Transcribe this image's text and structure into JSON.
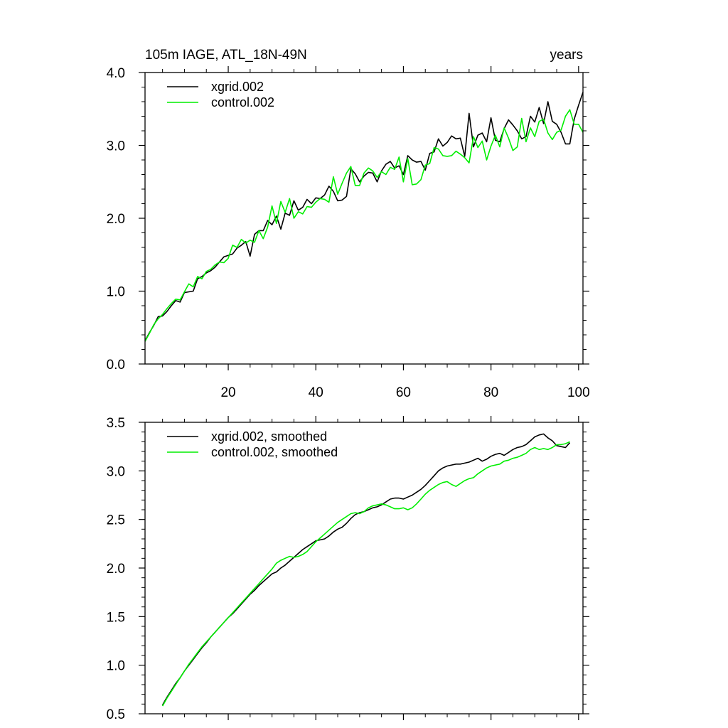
{
  "chart_data": [
    {
      "type": "line",
      "title": "105m IAGE, ATL_18N-49N",
      "units_label": "years",
      "xlim": [
        1,
        101
      ],
      "ylim": [
        0,
        4
      ],
      "x_ticks": [
        20,
        40,
        60,
        80,
        100
      ],
      "y_ticks": [
        0,
        1,
        2,
        3,
        4
      ],
      "y_tick_labels": [
        "0.0",
        "1.0",
        "2.0",
        "3.0",
        "4.0"
      ],
      "legend": "top-left",
      "x_start": 1,
      "series": [
        {
          "name": "xgrid.002",
          "color": "#000000",
          "values": [
            0.32,
            0.43,
            0.53,
            0.65,
            0.66,
            0.72,
            0.8,
            0.87,
            0.85,
            0.98,
            0.99,
            1.0,
            1.17,
            1.2,
            1.25,
            1.28,
            1.33,
            1.4,
            1.47,
            1.49,
            1.51,
            1.59,
            1.63,
            1.68,
            1.48,
            1.78,
            1.83,
            1.83,
            1.97,
            1.91,
            2.03,
            1.85,
            2.07,
            2.04,
            2.24,
            2.11,
            2.15,
            2.26,
            2.2,
            2.28,
            2.27,
            2.32,
            2.44,
            2.37,
            2.24,
            2.25,
            2.3,
            2.68,
            2.61,
            2.5,
            2.58,
            2.63,
            2.62,
            2.5,
            2.65,
            2.74,
            2.78,
            2.69,
            2.72,
            2.6,
            2.86,
            2.8,
            2.77,
            2.78,
            2.66,
            2.89,
            2.91,
            3.09,
            2.99,
            3.04,
            3.13,
            3.09,
            3.1,
            2.85,
            3.44,
            2.98,
            3.14,
            3.17,
            3.05,
            3.38,
            3.07,
            3.05,
            3.23,
            3.35,
            3.28,
            3.2,
            3.09,
            3.12,
            3.4,
            3.32,
            3.52,
            3.3,
            3.6,
            3.33,
            3.29,
            3.18,
            3.02,
            3.02,
            3.36,
            3.55,
            3.73
          ]
        },
        {
          "name": "control.002",
          "color": "#00ee00",
          "values": [
            0.31,
            0.42,
            0.54,
            0.62,
            0.68,
            0.76,
            0.83,
            0.89,
            0.88,
            0.99,
            1.1,
            1.06,
            1.2,
            1.17,
            1.27,
            1.3,
            1.36,
            1.4,
            1.39,
            1.45,
            1.63,
            1.6,
            1.71,
            1.66,
            1.7,
            1.67,
            1.83,
            1.72,
            1.88,
            2.17,
            1.93,
            2.23,
            2.08,
            2.27,
            2.0,
            2.09,
            2.06,
            2.16,
            2.15,
            2.22,
            2.27,
            2.26,
            2.22,
            2.57,
            2.33,
            2.48,
            2.62,
            2.71,
            2.45,
            2.45,
            2.62,
            2.69,
            2.65,
            2.56,
            2.64,
            2.6,
            2.7,
            2.67,
            2.84,
            2.5,
            2.82,
            2.46,
            2.47,
            2.53,
            2.73,
            2.75,
            2.97,
            2.95,
            2.86,
            2.85,
            2.86,
            2.92,
            2.88,
            2.83,
            2.76,
            3.12,
            2.97,
            3.06,
            2.8,
            2.99,
            3.14,
            2.98,
            3.24,
            3.1,
            2.93,
            2.98,
            3.37,
            3.05,
            3.24,
            3.12,
            3.33,
            3.36,
            3.17,
            3.08,
            3.18,
            3.21,
            3.4,
            3.49,
            3.29,
            3.29,
            3.18
          ]
        }
      ]
    },
    {
      "type": "line",
      "title": "",
      "xlim": [
        1,
        101
      ],
      "ylim": [
        0.5,
        3.5
      ],
      "x_ticks": [
        20,
        40,
        60,
        80,
        100
      ],
      "y_ticks": [
        0.5,
        1.0,
        1.5,
        2.0,
        2.5,
        3.0,
        3.5
      ],
      "y_tick_labels": [
        "0.5",
        "1.0",
        "1.5",
        "2.0",
        "2.5",
        "3.0",
        "3.5"
      ],
      "legend": "top-left",
      "x_start": 5,
      "series": [
        {
          "name": "xgrid.002, smoothed",
          "color": "#000000",
          "values": [
            0.59,
            0.67,
            0.74,
            0.81,
            0.87,
            0.94,
            1.0,
            1.06,
            1.12,
            1.18,
            1.23,
            1.29,
            1.34,
            1.39,
            1.44,
            1.49,
            1.53,
            1.58,
            1.63,
            1.68,
            1.73,
            1.77,
            1.82,
            1.86,
            1.9,
            1.94,
            1.96,
            2.0,
            2.03,
            2.07,
            2.11,
            2.15,
            2.19,
            2.22,
            2.25,
            2.28,
            2.29,
            2.3,
            2.33,
            2.37,
            2.4,
            2.42,
            2.46,
            2.51,
            2.55,
            2.57,
            2.58,
            2.6,
            2.62,
            2.63,
            2.65,
            2.68,
            2.71,
            2.72,
            2.72,
            2.71,
            2.73,
            2.75,
            2.78,
            2.81,
            2.85,
            2.9,
            2.95,
            3.0,
            3.03,
            3.05,
            3.06,
            3.07,
            3.07,
            3.08,
            3.09,
            3.11,
            3.13,
            3.1,
            3.12,
            3.15,
            3.17,
            3.18,
            3.16,
            3.19,
            3.22,
            3.24,
            3.25,
            3.27,
            3.31,
            3.35,
            3.37,
            3.38,
            3.34,
            3.31,
            3.26,
            3.25,
            3.24,
            3.29
          ]
        },
        {
          "name": "control.002, smoothed",
          "color": "#00ee00",
          "values": [
            0.58,
            0.66,
            0.73,
            0.8,
            0.87,
            0.94,
            1.01,
            1.07,
            1.13,
            1.19,
            1.24,
            1.29,
            1.34,
            1.39,
            1.44,
            1.49,
            1.54,
            1.59,
            1.64,
            1.69,
            1.74,
            1.79,
            1.84,
            1.89,
            1.94,
            1.99,
            2.05,
            2.08,
            2.1,
            2.12,
            2.11,
            2.12,
            2.14,
            2.17,
            2.22,
            2.27,
            2.31,
            2.35,
            2.39,
            2.43,
            2.47,
            2.5,
            2.53,
            2.56,
            2.57,
            2.56,
            2.58,
            2.62,
            2.64,
            2.65,
            2.66,
            2.65,
            2.63,
            2.61,
            2.61,
            2.62,
            2.6,
            2.62,
            2.66,
            2.71,
            2.76,
            2.8,
            2.83,
            2.86,
            2.88,
            2.89,
            2.86,
            2.84,
            2.87,
            2.9,
            2.92,
            2.93,
            2.97,
            3.0,
            3.03,
            3.05,
            3.06,
            3.07,
            3.1,
            3.11,
            3.13,
            3.14,
            3.16,
            3.18,
            3.22,
            3.24,
            3.22,
            3.23,
            3.22,
            3.24,
            3.27,
            3.27,
            3.28,
            3.3
          ]
        }
      ]
    }
  ]
}
